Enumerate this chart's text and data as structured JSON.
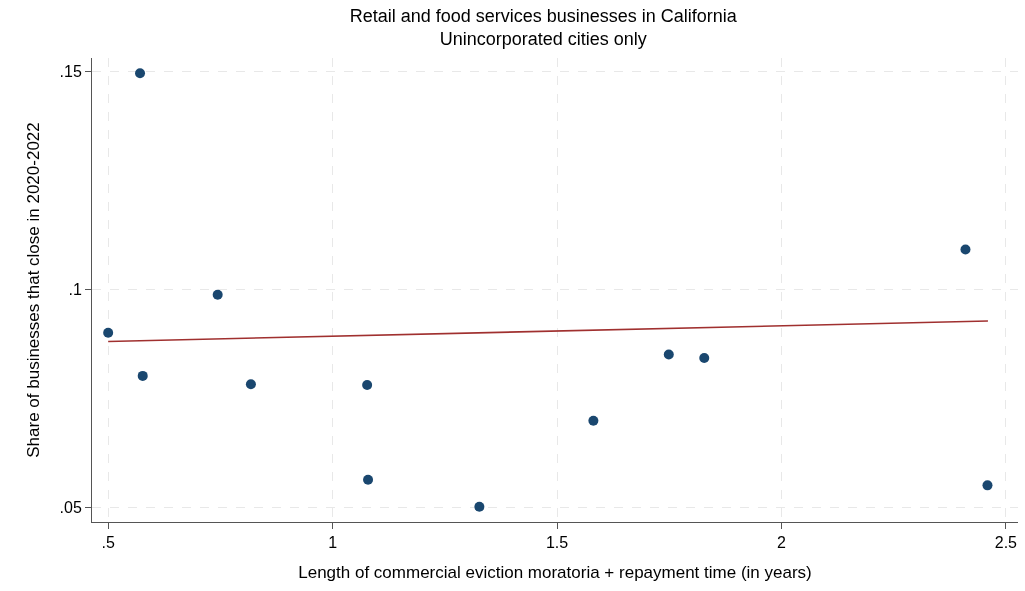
{
  "chart_data": {
    "type": "scatter",
    "title": "Retail and food services businesses in California\nUnincorporated cities only",
    "xlabel": "Length of commercial eviction moratoria + repayment time (in years)",
    "ylabel": "Share of businesses that close in 2020-2022",
    "series": [
      {
        "color": "#1a476f",
        "marker": "circle",
        "x": [
          0.5,
          0.571,
          0.577,
          0.744,
          0.818,
          1.077,
          1.079,
          1.327,
          1.581,
          1.749,
          1.828,
          2.41,
          2.459
        ],
        "values": [
          0.09,
          0.1495,
          0.0801,
          0.0987,
          0.0782,
          0.078,
          0.0563,
          0.0501,
          0.0698,
          0.085,
          0.0842,
          0.1091,
          0.055
        ]
      },
      {
        "type": "line",
        "color": "#a0302f",
        "line_style": "solid",
        "x": [
          0.5,
          2.46
        ],
        "values": [
          0.088,
          0.0927
        ]
      }
    ],
    "xlim": [
      0.464,
      2.527
    ],
    "ylim": [
      0.0466,
      0.153
    ],
    "xticks": [
      {
        "value": 0.5,
        "label": ".5"
      },
      1,
      1.5,
      2,
      2.5
    ],
    "yticks": [
      {
        "value": 0.05,
        "label": ".05"
      },
      {
        "value": 0.1,
        "label": ".1"
      },
      {
        "value": 0.15,
        "label": ".15"
      }
    ],
    "grid": true
  }
}
